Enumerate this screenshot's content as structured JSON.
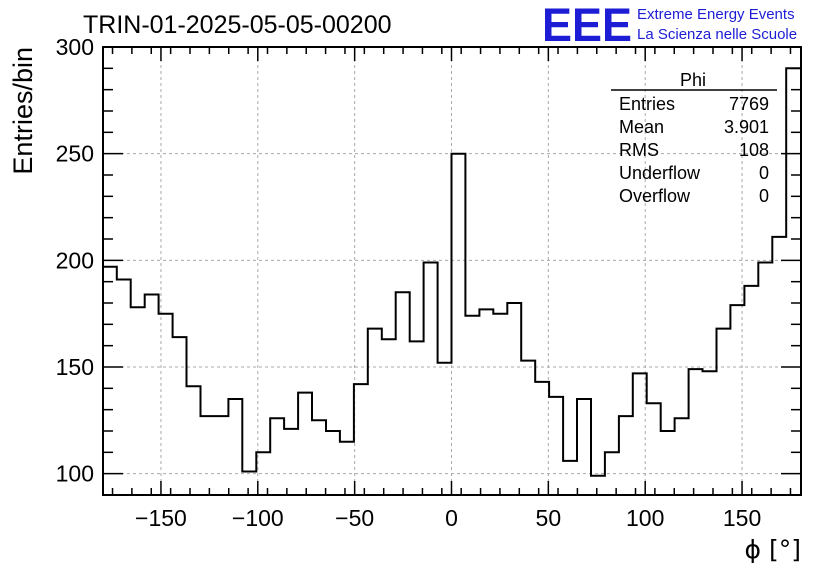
{
  "logo": {
    "mark": "EEE",
    "line1": "Extreme Energy Events",
    "line2": "La Scienza nelle Scuole",
    "color": "#1d1dd6"
  },
  "stats": {
    "title": "Phi",
    "rows": [
      {
        "label": "Entries",
        "value": "7769"
      },
      {
        "label": "Mean",
        "value": "3.901"
      },
      {
        "label": "RMS",
        "value": "108"
      },
      {
        "label": "Underflow",
        "value": "0"
      },
      {
        "label": "Overflow",
        "value": "0"
      }
    ]
  },
  "chart_data": {
    "type": "histogram",
    "title": "TRIN-01-2025-05-05-00200",
    "xlabel": "ϕ [°]",
    "ylabel": "Entries/bin",
    "xlim": [
      -180,
      180
    ],
    "ylim": [
      90,
      300
    ],
    "bin_width": 7.2,
    "grid": true,
    "line_color": "#000000",
    "x_ticks": [
      -150,
      -100,
      -50,
      0,
      50,
      100,
      150
    ],
    "y_ticks": [
      100,
      150,
      200,
      250,
      300
    ],
    "values": [
      197,
      191,
      178,
      184,
      175,
      164,
      141,
      127,
      127,
      135,
      101,
      110,
      126,
      121,
      138,
      125,
      120,
      115,
      142,
      168,
      163,
      185,
      162,
      199,
      152,
      250,
      174,
      177,
      175,
      180,
      153,
      143,
      136,
      106,
      135,
      99,
      110,
      127,
      147,
      133,
      120,
      126,
      149,
      148,
      168,
      179,
      188,
      199,
      211,
      290
    ]
  }
}
